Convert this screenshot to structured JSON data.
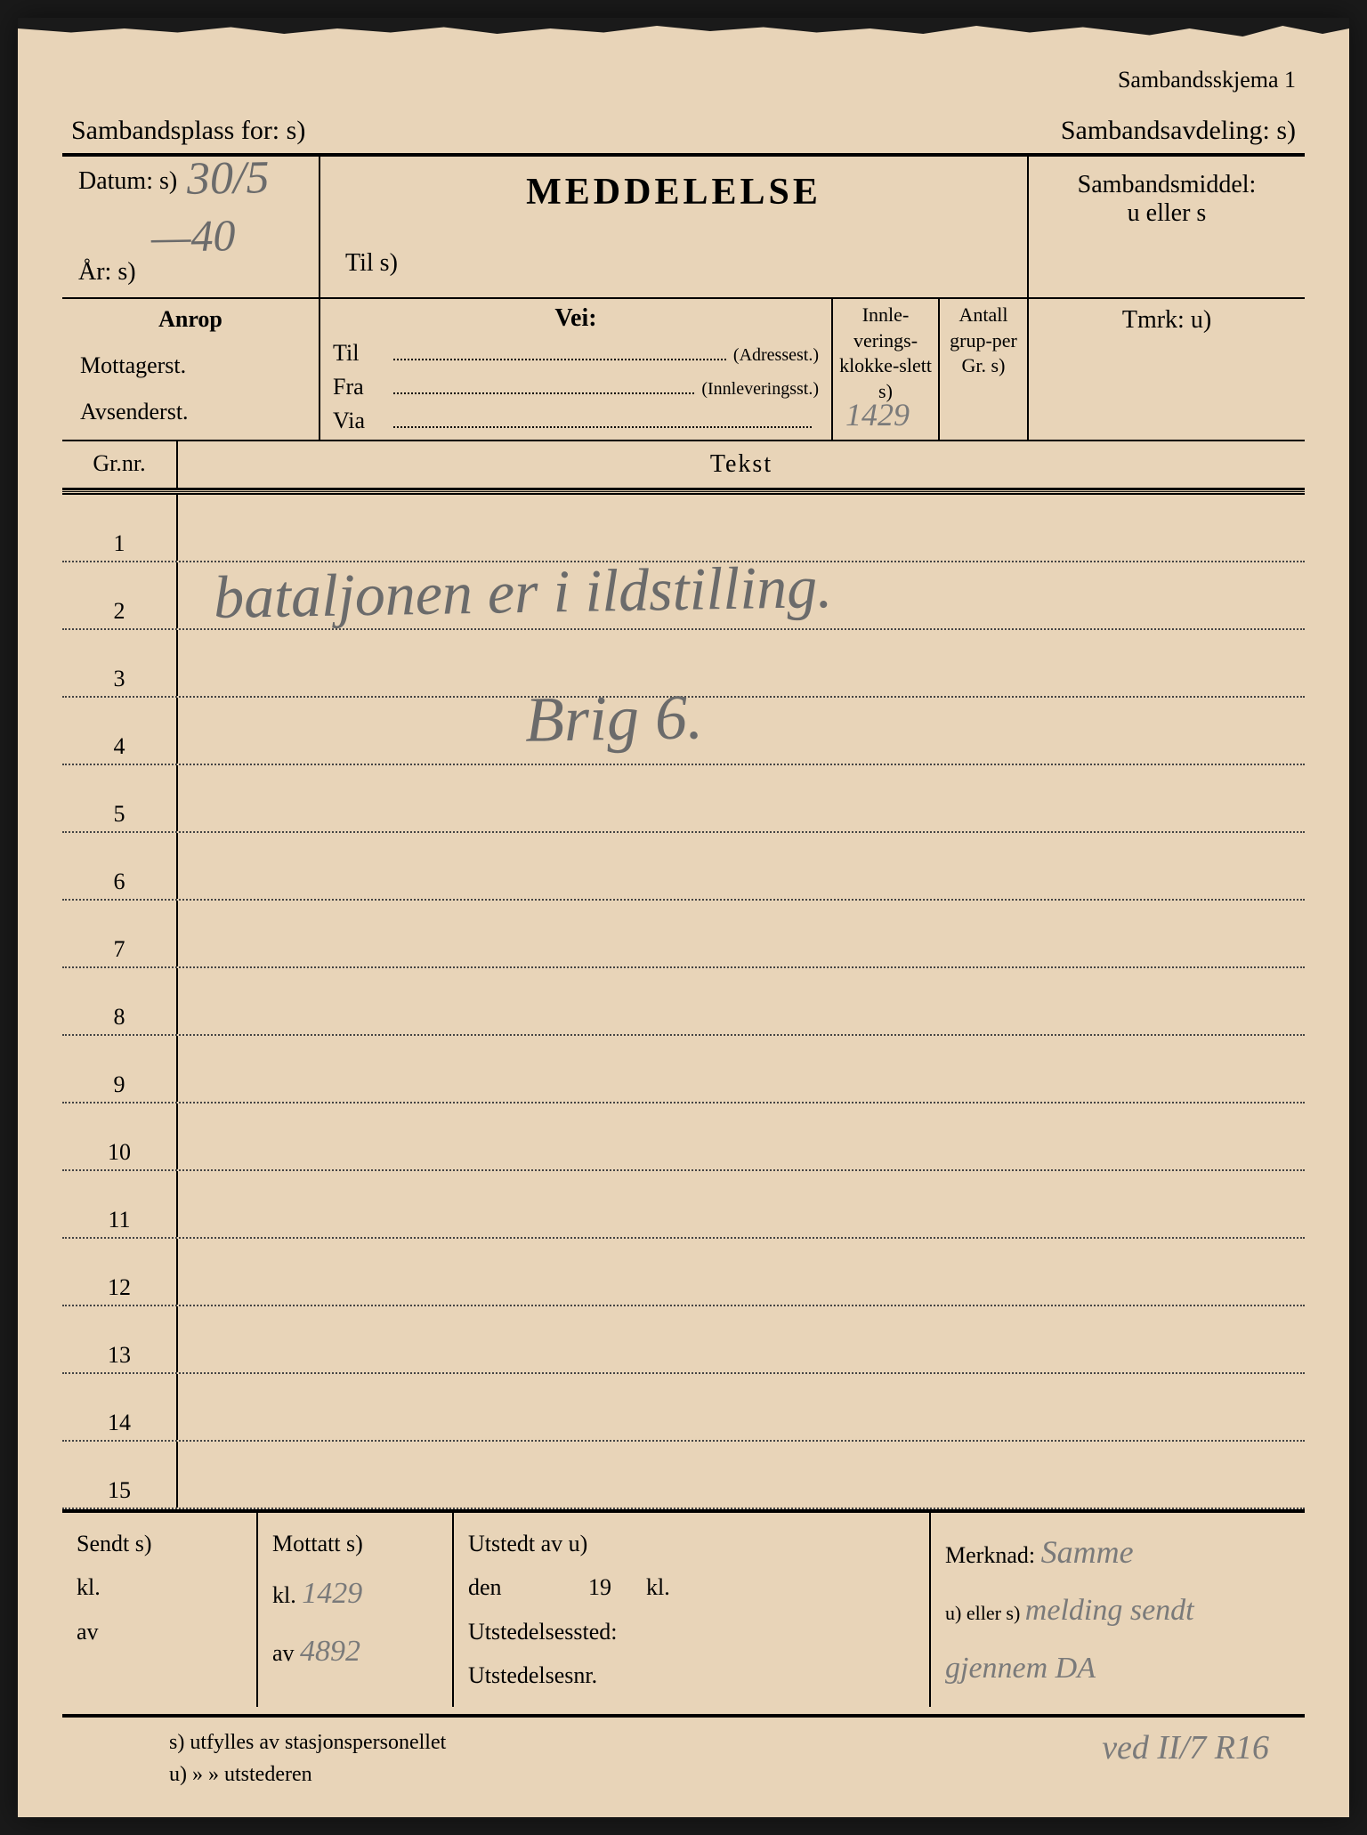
{
  "form_id": "Sambandsskjema 1",
  "header": {
    "sambandsplass_label": "Sambandsplass for: s)",
    "sambandsavdeling_label": "Sambandsavdeling: s)"
  },
  "row1": {
    "datum_label": "Datum: s)",
    "datum_value": "30/5",
    "ar_label": "År: s)",
    "ar_value": "—40",
    "meddelelse_title": "MEDDELELSE",
    "til_label": "Til s)",
    "sambandsmiddel_label": "Sambandsmiddel:",
    "sambandsmiddel_sub": "u eller s"
  },
  "row2": {
    "anrop_title": "Anrop",
    "mottagerst": "Mottagerst.",
    "avsenderst": "Avsenderst.",
    "vei_title": "Vei:",
    "til": "Til",
    "til_hint": "(Adressest.)",
    "fra": "Fra",
    "fra_hint": "(Innleveringsst.)",
    "via": "Via",
    "innlev_label": "Innle-verings-klokke-slett s)",
    "innlev_value": "1429",
    "antall_label": "Antall grup-per Gr. s)",
    "tmrk_label": "Tmrk: u)"
  },
  "grnr": {
    "grnr_label": "Gr.nr.",
    "tekst_label": "Tekst"
  },
  "text_rows": [
    "1",
    "2",
    "3",
    "4",
    "5",
    "6",
    "7",
    "8",
    "9",
    "10",
    "11",
    "12",
    "13",
    "14",
    "15"
  ],
  "handwritten_text": {
    "line2": "bataljonen er i ildstilling.",
    "line4": "Brig 6."
  },
  "bottom": {
    "sendt_label": "Sendt s)",
    "kl_label": "kl.",
    "av_label": "av",
    "mottatt_label": "Mottatt s)",
    "mottatt_kl_value": "1429",
    "mottatt_av_value": "4892",
    "utstedt_label": "Utstedt av u)",
    "den_label": "den",
    "nineteen": "19",
    "utstedelsessted": "Utstedelsessted:",
    "utstedelsesnr": "Utstedelsesnr.",
    "merknad_label": "Merknad:",
    "merknad_sub": "u) eller s)",
    "merknad_hw1": "Samme",
    "merknad_hw2": "melding sendt",
    "merknad_hw3": "gjennem DA",
    "merknad_hw4": "ved II/7 R16"
  },
  "footer": {
    "line1": "s) utfylles av stasjonspersonellet",
    "line2": "u)   »       » utstederen"
  },
  "colors": {
    "paper": "#e8d4b8",
    "ink": "#000000",
    "pencil": "#6b6b6b",
    "background": "#1a1a1a"
  }
}
